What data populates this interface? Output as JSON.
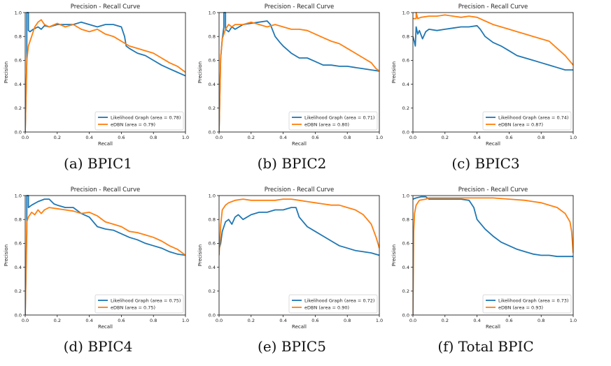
{
  "colors": {
    "likelihood": "#1f77b4",
    "edbn": "#ff7f0e"
  },
  "chart_data": [
    {
      "type": "line",
      "caption": "(a) BPIC1",
      "title": "Precision - Recall Curve",
      "xlabel": "Recall",
      "ylabel": "Precision",
      "xlim": [
        0,
        1
      ],
      "ylim": [
        0,
        1
      ],
      "xticks": [
        "0.0",
        "0.2",
        "0.4",
        "0.6",
        "0.8",
        "1.0"
      ],
      "yticks": [
        "0.0",
        "0.2",
        "0.4",
        "0.6",
        "0.8",
        "1.0"
      ],
      "legend_position": "lower-right",
      "series": [
        {
          "name": "Likelihood Graph (area = 0.78)",
          "color": "#1f77b4",
          "x": [
            0,
            0.01,
            0.01,
            0.02,
            0.02,
            0.03,
            0.05,
            0.08,
            0.1,
            0.12,
            0.15,
            0.2,
            0.25,
            0.3,
            0.35,
            0.4,
            0.45,
            0.5,
            0.55,
            0.6,
            0.62,
            0.63,
            0.65,
            0.7,
            0.75,
            0.8,
            0.85,
            0.9,
            0.95,
            1.0
          ],
          "y": [
            0,
            0.6,
            1.0,
            1.0,
            0.85,
            0.84,
            0.86,
            0.88,
            0.86,
            0.89,
            0.88,
            0.9,
            0.9,
            0.9,
            0.92,
            0.9,
            0.88,
            0.9,
            0.9,
            0.88,
            0.8,
            0.72,
            0.7,
            0.66,
            0.64,
            0.6,
            0.56,
            0.53,
            0.5,
            0.47
          ]
        },
        {
          "name": "eDBN (area = 0.79)",
          "color": "#ff7f0e",
          "x": [
            0,
            0.01,
            0.02,
            0.04,
            0.06,
            0.08,
            0.1,
            0.12,
            0.15,
            0.2,
            0.25,
            0.3,
            0.35,
            0.4,
            0.45,
            0.5,
            0.55,
            0.6,
            0.65,
            0.7,
            0.75,
            0.8,
            0.85,
            0.9,
            0.95,
            1.0
          ],
          "y": [
            0,
            0.6,
            0.72,
            0.8,
            0.88,
            0.92,
            0.94,
            0.9,
            0.88,
            0.91,
            0.88,
            0.9,
            0.86,
            0.84,
            0.86,
            0.82,
            0.8,
            0.76,
            0.72,
            0.7,
            0.68,
            0.66,
            0.62,
            0.58,
            0.55,
            0.5
          ]
        }
      ]
    },
    {
      "type": "line",
      "caption": "(b) BPIC2",
      "title": "Precision - Recall Curve",
      "xlabel": "Recall",
      "ylabel": "Precision",
      "xlim": [
        0,
        1
      ],
      "ylim": [
        0,
        1
      ],
      "xticks": [
        "0.0",
        "0.2",
        "0.4",
        "0.6",
        "0.8",
        "1.0"
      ],
      "yticks": [
        "0.0",
        "0.2",
        "0.4",
        "0.6",
        "0.8",
        "1.0"
      ],
      "legend_position": "lower-right",
      "series": [
        {
          "name": "Likelihood Graph (area = 0.71)",
          "color": "#1f77b4",
          "x": [
            0,
            0.01,
            0.02,
            0.03,
            0.03,
            0.04,
            0.04,
            0.06,
            0.08,
            0.1,
            0.15,
            0.2,
            0.25,
            0.3,
            0.32,
            0.35,
            0.38,
            0.4,
            0.45,
            0.5,
            0.55,
            0.6,
            0.65,
            0.7,
            0.75,
            0.8,
            0.85,
            0.9,
            0.95,
            1.0
          ],
          "y": [
            0,
            0.62,
            0.78,
            0.88,
            1.0,
            1.0,
            0.86,
            0.84,
            0.88,
            0.86,
            0.9,
            0.91,
            0.92,
            0.93,
            0.9,
            0.8,
            0.75,
            0.72,
            0.66,
            0.62,
            0.62,
            0.59,
            0.56,
            0.56,
            0.55,
            0.55,
            0.54,
            0.53,
            0.52,
            0.51
          ]
        },
        {
          "name": "eDBN (area = 0.80)",
          "color": "#ff7f0e",
          "x": [
            0,
            0.01,
            0.02,
            0.04,
            0.06,
            0.08,
            0.1,
            0.15,
            0.2,
            0.25,
            0.3,
            0.35,
            0.4,
            0.45,
            0.5,
            0.55,
            0.6,
            0.65,
            0.7,
            0.75,
            0.8,
            0.85,
            0.9,
            0.95,
            0.98,
            1.0
          ],
          "y": [
            0,
            0.62,
            0.78,
            0.86,
            0.9,
            0.88,
            0.9,
            0.9,
            0.92,
            0.9,
            0.88,
            0.9,
            0.88,
            0.86,
            0.86,
            0.85,
            0.82,
            0.79,
            0.76,
            0.74,
            0.7,
            0.66,
            0.62,
            0.58,
            0.53,
            0.51
          ]
        }
      ]
    },
    {
      "type": "line",
      "caption": "(c) BPIC3",
      "title": "Precision - Recall Curve",
      "xlabel": "Recall",
      "ylabel": "Precision",
      "xlim": [
        0,
        1
      ],
      "ylim": [
        0,
        1
      ],
      "xticks": [
        "0.0",
        "0.2",
        "0.4",
        "0.6",
        "0.8",
        "1.0"
      ],
      "yticks": [
        "0.0",
        "0.2",
        "0.4",
        "0.6",
        "0.8",
        "1.0"
      ],
      "legend_position": "lower-right",
      "series": [
        {
          "name": "Likelihood Graph (area = 0.74)",
          "color": "#1f77b4",
          "x": [
            0,
            0.01,
            0.015,
            0.02,
            0.03,
            0.04,
            0.06,
            0.08,
            0.1,
            0.15,
            0.2,
            0.25,
            0.3,
            0.35,
            0.4,
            0.42,
            0.45,
            0.5,
            0.55,
            0.6,
            0.65,
            0.7,
            0.75,
            0.8,
            0.85,
            0.9,
            0.95,
            1.0
          ],
          "y": [
            0.8,
            0.75,
            0.72,
            0.88,
            0.82,
            0.85,
            0.78,
            0.84,
            0.86,
            0.85,
            0.86,
            0.87,
            0.88,
            0.88,
            0.89,
            0.86,
            0.8,
            0.75,
            0.72,
            0.68,
            0.64,
            0.62,
            0.6,
            0.58,
            0.56,
            0.54,
            0.52,
            0.52
          ]
        },
        {
          "name": "eDBN (area = 0.87)",
          "color": "#ff7f0e",
          "x": [
            0,
            0.01,
            0.02,
            0.02,
            0.03,
            0.05,
            0.1,
            0.15,
            0.2,
            0.25,
            0.3,
            0.35,
            0.4,
            0.45,
            0.5,
            0.55,
            0.6,
            0.65,
            0.7,
            0.75,
            0.8,
            0.85,
            0.9,
            0.95,
            1.0
          ],
          "y": [
            0.95,
            0.95,
            0.95,
            1.0,
            0.95,
            0.96,
            0.97,
            0.97,
            0.98,
            0.97,
            0.96,
            0.97,
            0.96,
            0.93,
            0.9,
            0.88,
            0.86,
            0.84,
            0.82,
            0.8,
            0.78,
            0.76,
            0.7,
            0.64,
            0.56
          ]
        }
      ]
    },
    {
      "type": "line",
      "caption": "(d) BPIC4",
      "title": "Precision - Recall Curve",
      "xlabel": "Recall",
      "ylabel": "Precision",
      "xlim": [
        0,
        1
      ],
      "ylim": [
        0,
        1
      ],
      "xticks": [
        "0.0",
        "0.2",
        "0.4",
        "0.6",
        "0.8",
        "1.0"
      ],
      "yticks": [
        "0.0",
        "0.2",
        "0.4",
        "0.6",
        "0.8",
        "1.0"
      ],
      "legend_position": "lower-right",
      "series": [
        {
          "name": "Likelihood Graph (area = 0.75)",
          "color": "#1f77b4",
          "x": [
            0,
            0.01,
            0.01,
            0.02,
            0.02,
            0.04,
            0.08,
            0.12,
            0.15,
            0.18,
            0.2,
            0.25,
            0.3,
            0.35,
            0.4,
            0.45,
            0.5,
            0.55,
            0.6,
            0.65,
            0.7,
            0.75,
            0.8,
            0.85,
            0.9,
            0.95,
            1.0
          ],
          "y": [
            0,
            0.7,
            1.0,
            1.0,
            0.9,
            0.92,
            0.95,
            0.97,
            0.97,
            0.93,
            0.92,
            0.9,
            0.9,
            0.85,
            0.82,
            0.74,
            0.72,
            0.71,
            0.68,
            0.65,
            0.63,
            0.6,
            0.58,
            0.56,
            0.53,
            0.51,
            0.5
          ]
        },
        {
          "name": "eDBN (area = 0.75)",
          "color": "#ff7f0e",
          "x": [
            0,
            0.01,
            0.02,
            0.04,
            0.06,
            0.08,
            0.1,
            0.12,
            0.15,
            0.2,
            0.25,
            0.3,
            0.35,
            0.4,
            0.45,
            0.5,
            0.55,
            0.6,
            0.65,
            0.7,
            0.75,
            0.8,
            0.85,
            0.9,
            0.95,
            1.0
          ],
          "y": [
            0,
            0.78,
            0.82,
            0.86,
            0.84,
            0.88,
            0.85,
            0.88,
            0.9,
            0.89,
            0.88,
            0.87,
            0.85,
            0.86,
            0.83,
            0.78,
            0.76,
            0.74,
            0.7,
            0.69,
            0.67,
            0.65,
            0.62,
            0.58,
            0.55,
            0.5
          ]
        }
      ]
    },
    {
      "type": "line",
      "caption": "(e) BPIC5",
      "title": "Precision - Recall Curve",
      "xlabel": "Recall",
      "ylabel": "Precision",
      "xlim": [
        0,
        1
      ],
      "ylim": [
        0,
        1
      ],
      "xticks": [
        "0.0",
        "0.2",
        "0.4",
        "0.6",
        "0.8",
        "1.0"
      ],
      "yticks": [
        "0.0",
        "0.2",
        "0.4",
        "0.6",
        "0.8",
        "1.0"
      ],
      "legend_position": "lower-right",
      "series": [
        {
          "name": "Likelihood Graph (area = 0.72)",
          "color": "#1f77b4",
          "x": [
            0,
            0.01,
            0.02,
            0.04,
            0.06,
            0.08,
            0.1,
            0.12,
            0.15,
            0.2,
            0.25,
            0.3,
            0.35,
            0.4,
            0.45,
            0.48,
            0.5,
            0.55,
            0.6,
            0.65,
            0.7,
            0.75,
            0.8,
            0.85,
            0.9,
            0.95,
            1.0
          ],
          "y": [
            0.55,
            0.6,
            0.7,
            0.78,
            0.8,
            0.76,
            0.82,
            0.84,
            0.8,
            0.84,
            0.86,
            0.86,
            0.88,
            0.88,
            0.9,
            0.9,
            0.82,
            0.74,
            0.7,
            0.66,
            0.62,
            0.58,
            0.56,
            0.54,
            0.53,
            0.52,
            0.5
          ]
        },
        {
          "name": "eDBN (area = 0.90)",
          "color": "#ff7f0e",
          "x": [
            0,
            0.01,
            0.02,
            0.04,
            0.06,
            0.08,
            0.1,
            0.15,
            0.2,
            0.25,
            0.3,
            0.35,
            0.4,
            0.45,
            0.5,
            0.55,
            0.6,
            0.65,
            0.7,
            0.75,
            0.8,
            0.85,
            0.9,
            0.95,
            0.98,
            1.0
          ],
          "y": [
            0.5,
            0.75,
            0.88,
            0.92,
            0.94,
            0.95,
            0.96,
            0.97,
            0.96,
            0.96,
            0.96,
            0.96,
            0.97,
            0.97,
            0.96,
            0.95,
            0.94,
            0.93,
            0.92,
            0.92,
            0.9,
            0.88,
            0.84,
            0.76,
            0.65,
            0.56
          ]
        }
      ]
    },
    {
      "type": "line",
      "caption": "(f) Total BPIC",
      "title": "Precision - Recall Curve",
      "xlabel": "Recall",
      "ylabel": "Precision",
      "xlim": [
        0,
        1
      ],
      "ylim": [
        0,
        1
      ],
      "xticks": [
        "0.0",
        "0.2",
        "0.4",
        "0.6",
        "0.8",
        "1.0"
      ],
      "yticks": [
        "0.0",
        "0.2",
        "0.4",
        "0.6",
        "0.8",
        "1.0"
      ],
      "legend_position": "lower-right",
      "series": [
        {
          "name": "Likelihood Graph (area = 0.73)",
          "color": "#1f77b4",
          "x": [
            0,
            0.02,
            0.05,
            0.08,
            0.1,
            0.15,
            0.2,
            0.25,
            0.3,
            0.35,
            0.38,
            0.4,
            0.45,
            0.5,
            0.55,
            0.6,
            0.65,
            0.7,
            0.75,
            0.8,
            0.85,
            0.9,
            0.95,
            1.0
          ],
          "y": [
            0.97,
            0.98,
            0.99,
            0.99,
            0.97,
            0.97,
            0.97,
            0.97,
            0.97,
            0.96,
            0.9,
            0.8,
            0.72,
            0.66,
            0.61,
            0.58,
            0.55,
            0.53,
            0.51,
            0.5,
            0.5,
            0.49,
            0.49,
            0.49
          ]
        },
        {
          "name": "eDBN (area = 0.93)",
          "color": "#ff7f0e",
          "x": [
            0,
            0.005,
            0.01,
            0.02,
            0.04,
            0.08,
            0.1,
            0.2,
            0.3,
            0.4,
            0.5,
            0.6,
            0.7,
            0.75,
            0.8,
            0.85,
            0.9,
            0.95,
            0.98,
            0.99,
            1.0
          ],
          "y": [
            0,
            0.7,
            0.85,
            0.92,
            0.96,
            0.97,
            0.98,
            0.98,
            0.98,
            0.98,
            0.98,
            0.97,
            0.96,
            0.95,
            0.94,
            0.92,
            0.9,
            0.85,
            0.78,
            0.7,
            0.52
          ]
        }
      ]
    }
  ]
}
